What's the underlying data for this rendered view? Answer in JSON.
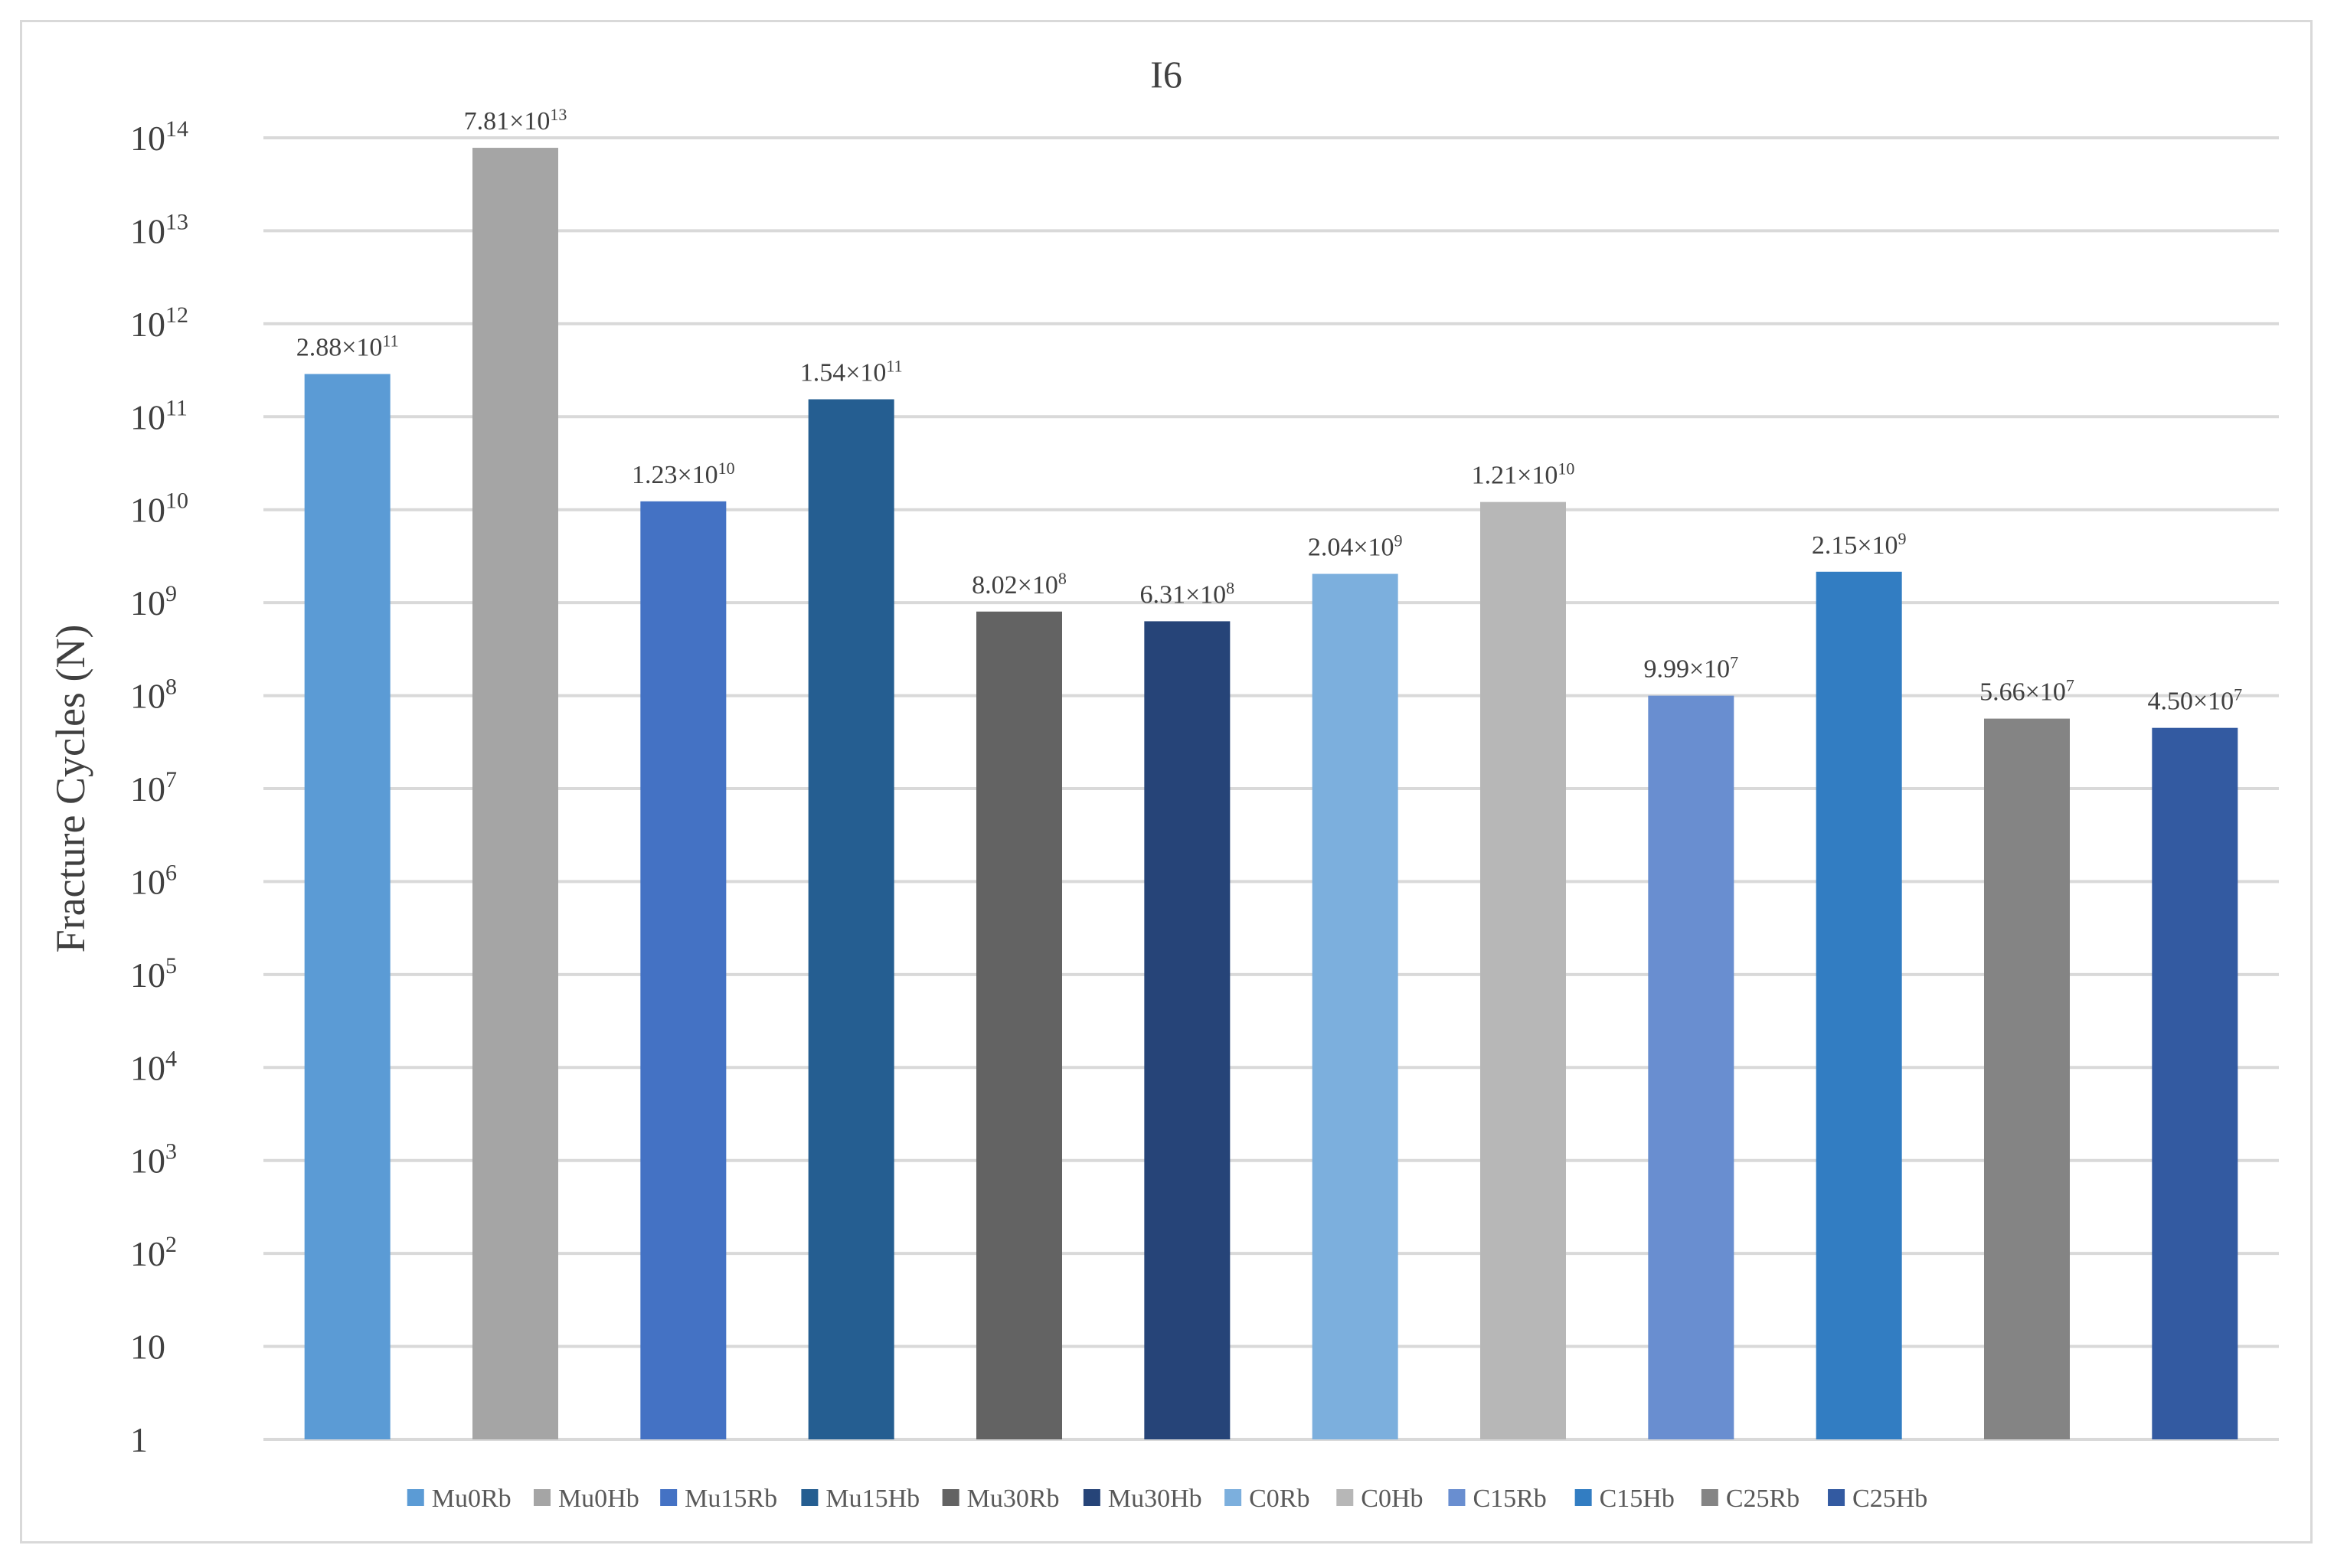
{
  "chart_data": {
    "type": "bar",
    "title": "I6",
    "ylabel": "Fracture Cycles (N)",
    "xlabel": "",
    "yscale": "log",
    "ylim": [
      1,
      100000000000000
    ],
    "grid": true,
    "legend_position": "bottom",
    "yticks": [
      {
        "base": "1",
        "exp": ""
      },
      {
        "base": "10",
        "exp": ""
      },
      {
        "base": "10",
        "exp": "2"
      },
      {
        "base": "10",
        "exp": "3"
      },
      {
        "base": "10",
        "exp": "4"
      },
      {
        "base": "10",
        "exp": "5"
      },
      {
        "base": "10",
        "exp": "6"
      },
      {
        "base": "10",
        "exp": "7"
      },
      {
        "base": "10",
        "exp": "8"
      },
      {
        "base": "10",
        "exp": "9"
      },
      {
        "base": "10",
        "exp": "10"
      },
      {
        "base": "10",
        "exp": "11"
      },
      {
        "base": "10",
        "exp": "12"
      },
      {
        "base": "10",
        "exp": "13"
      },
      {
        "base": "10",
        "exp": "14"
      }
    ],
    "series": [
      {
        "name": "Mu0Rb",
        "value": 288000000000.0,
        "label_mantissa": "2.88×10",
        "label_exp": "11",
        "color": "#5B9BD5"
      },
      {
        "name": "Mu0Hb",
        "value": 78100000000000.0,
        "label_mantissa": "7.81×10",
        "label_exp": "13",
        "color": "#A5A5A5"
      },
      {
        "name": "Mu15Rb",
        "value": 12300000000.0,
        "label_mantissa": "1.23×10",
        "label_exp": "10",
        "color": "#4472C4"
      },
      {
        "name": "Mu15Hb",
        "value": 154000000000.0,
        "label_mantissa": "1.54×10",
        "label_exp": "11",
        "color": "#255E91"
      },
      {
        "name": "Mu30Rb",
        "value": 802000000.0,
        "label_mantissa": "8.02×10",
        "label_exp": "8",
        "color": "#636363"
      },
      {
        "name": "Mu30Hb",
        "value": 631000000.0,
        "label_mantissa": "6.31×10",
        "label_exp": "8",
        "color": "#264478"
      },
      {
        "name": "C0Rb",
        "value": 2040000000.0,
        "label_mantissa": "2.04×10",
        "label_exp": "9",
        "color": "#7CAFDD"
      },
      {
        "name": "C0Hb",
        "value": 12100000000.0,
        "label_mantissa": "1.21×10",
        "label_exp": "10",
        "color": "#B7B7B7"
      },
      {
        "name": "C15Rb",
        "value": 99900000.0,
        "label_mantissa": "9.99×10",
        "label_exp": "7",
        "color": "#698ED0"
      },
      {
        "name": "C15Hb",
        "value": 2150000000.0,
        "label_mantissa": "2.15×10",
        "label_exp": "9",
        "color": "#327DC2"
      },
      {
        "name": "C25Rb",
        "value": 56600000.0,
        "label_mantissa": "5.66×10",
        "label_exp": "7",
        "color": "#848484"
      },
      {
        "name": "C25Hb",
        "value": 45000000.0,
        "label_mantissa": "4.50×10",
        "label_exp": "7",
        "color": "#335AA1"
      }
    ]
  },
  "colors": {
    "gridline": "#d9d9d9",
    "text": "#404040",
    "frame": "#d9d9d9"
  }
}
